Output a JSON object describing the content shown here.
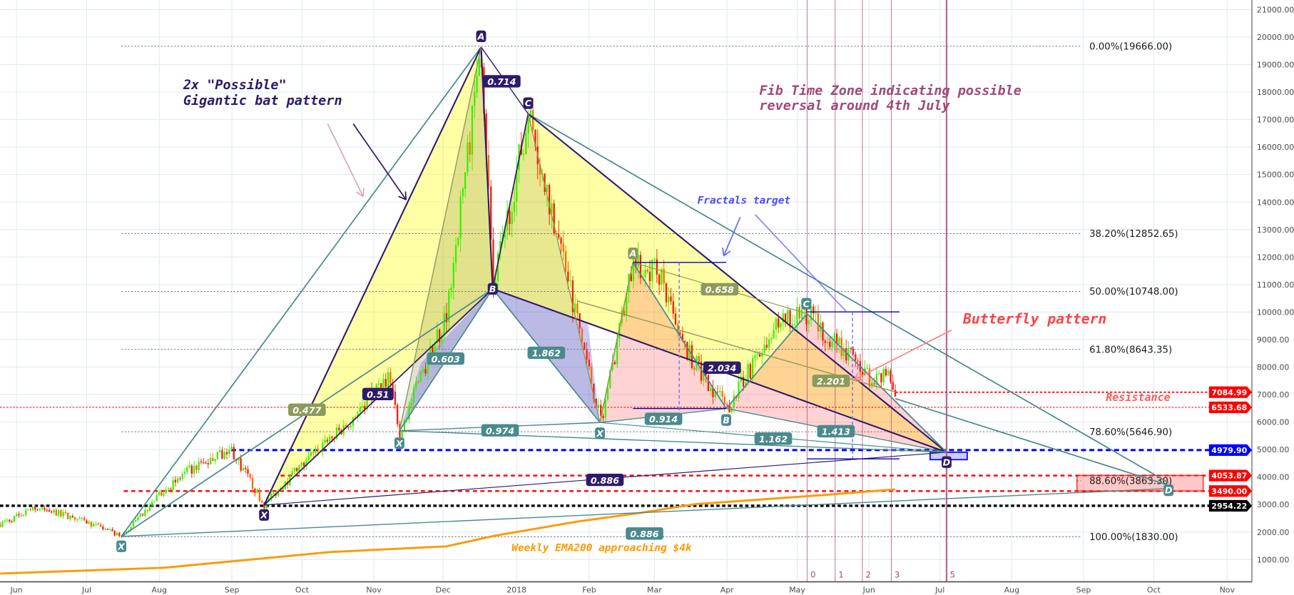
{
  "chart_data": {
    "type": "candlestick",
    "title": "",
    "xlabel": "",
    "ylabel": "",
    "grid": true,
    "ylim": [
      0,
      21000
    ],
    "x_ticks": [
      "Jun",
      "Jul",
      "Aug",
      "Sep",
      "Oct",
      "Nov",
      "Dec",
      "2018",
      "Feb",
      "Mar",
      "Apr",
      "May",
      "Jun",
      "Jul",
      "Aug",
      "Sep",
      "Oct",
      "Nov"
    ],
    "y_ticks": [
      1000,
      2000,
      3000,
      4000,
      5000,
      6000,
      7000,
      8000,
      9000,
      10000,
      11000,
      12000,
      13000,
      14000,
      15000,
      16000,
      17000,
      18000,
      19000,
      20000,
      21000
    ],
    "price_path": [
      [
        "2017-05-25",
        2290
      ],
      [
        "2017-06-10",
        2890
      ],
      [
        "2017-06-29",
        2440
      ],
      [
        "2017-07-16",
        1830
      ],
      [
        "2017-08-01",
        3340
      ],
      [
        "2017-08-14",
        4240
      ],
      [
        "2017-09-01",
        4990
      ],
      [
        "2017-09-15",
        2980
      ],
      [
        "2017-09-29",
        4240
      ],
      [
        "2017-10-20",
        5890
      ],
      [
        "2017-11-07",
        7690
      ],
      [
        "2017-11-12",
        5680
      ],
      [
        "2017-12-02",
        9940
      ],
      [
        "2017-12-17",
        19570
      ],
      [
        "2017-12-22",
        10840
      ],
      [
        "2018-01-06",
        17210
      ],
      [
        "2018-01-20",
        12340
      ],
      [
        "2018-02-06",
        5980
      ],
      [
        "2018-02-20",
        11800
      ],
      [
        "2018-03-04",
        11440
      ],
      [
        "2018-03-11",
        9040
      ],
      [
        "2018-04-01",
        6490
      ],
      [
        "2018-04-22",
        9490
      ],
      [
        "2018-05-05",
        9940
      ],
      [
        "2018-05-27",
        8140
      ],
      [
        "2018-06-03",
        7390
      ],
      [
        "2018-06-09",
        7690
      ],
      [
        "2018-06-13",
        6533.68
      ]
    ],
    "ema200_weekly": [
      [
        "2017-05-25",
        490
      ],
      [
        "2017-08-03",
        700
      ],
      [
        "2017-10-13",
        1270
      ],
      [
        "2017-12-02",
        1480
      ],
      [
        "2017-12-23",
        1870
      ],
      [
        "2018-01-27",
        2380
      ],
      [
        "2018-02-24",
        2710
      ],
      [
        "2018-03-18",
        3010
      ],
      [
        "2018-05-13",
        3350
      ],
      [
        "2018-06-12",
        3550
      ]
    ],
    "fib_levels": [
      {
        "label": "0.00%(19666.00)",
        "price": 19666
      },
      {
        "label": "38.20%(12852.65)",
        "price": 12852.65
      },
      {
        "label": "50.00%(10748.00)",
        "price": 10748
      },
      {
        "label": "61.80%(8643.35)",
        "price": 8643.35
      },
      {
        "label": "78.60%(5646.90)",
        "price": 5646.9
      },
      {
        "label": "88.60%(3863.30)",
        "price": 3863.3
      },
      {
        "label": "100.00%(1830.00)",
        "price": 1830
      }
    ],
    "price_tags": [
      {
        "value": "7084.99",
        "price": 7084.99,
        "color": "#ff0000"
      },
      {
        "value": "6533.68",
        "price": 6533.68,
        "color": "#ff0000"
      },
      {
        "value": "4979.90",
        "price": 4979.9,
        "color": "#0000ff"
      },
      {
        "value": "4053.87",
        "price": 4053.87,
        "color": "#ff0000"
      },
      {
        "value": "3490.00",
        "price": 3490,
        "color": "#ff0000"
      },
      {
        "value": "2954.22",
        "price": 2954.22,
        "color": "#000000"
      }
    ],
    "fib_time_zones": [
      "0",
      "1",
      "2",
      "3",
      "5"
    ],
    "colors": {
      "up": "#3cf000",
      "down": "#ff1a00",
      "ema": "#ff9800",
      "grid": "#e1ecf2",
      "teal": "#4a8a8c",
      "purple": "#2e1a6b",
      "olive": "#8c9a5a"
    }
  },
  "annotations": {
    "bat_title": [
      "2x \"Possible\"",
      "Gigantic bat pattern"
    ],
    "fib_time_note": [
      "Fib Time Zone indicating possible",
      "reversal around 4th July"
    ],
    "fractals": "Fractals target",
    "butterfly": "Butterfly pattern",
    "resistance": "Resistance",
    "ema_note": "Weekly EMA200 approaching $4k",
    "ratios": [
      "0.714",
      "0.477",
      "0.51",
      "0.603",
      "1.862",
      "0.658",
      "2.034",
      "2.201",
      "0.974",
      "0.914",
      "1.413",
      "1.162",
      "0.886",
      "0.886"
    ],
    "points": [
      "A",
      "C",
      "B",
      "X",
      "X",
      "X",
      "A",
      "X",
      "B",
      "C",
      "D",
      "D"
    ]
  }
}
